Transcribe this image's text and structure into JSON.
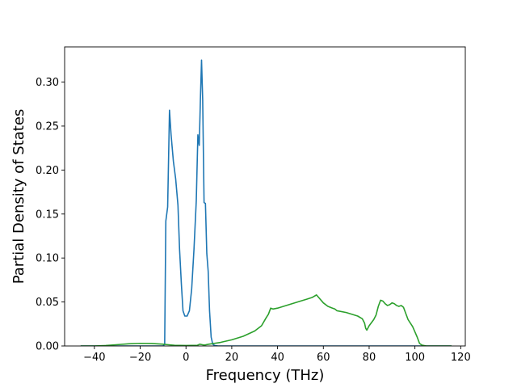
{
  "chart_data": {
    "type": "line",
    "title": "",
    "xlabel": "Frequency (THz)",
    "ylabel": "Partial Density of States",
    "xlim": [
      -53,
      122
    ],
    "ylim": [
      0,
      0.34
    ],
    "xticks": [
      -40,
      -20,
      0,
      20,
      40,
      60,
      80,
      100,
      120
    ],
    "xtick_labels": [
      "−40",
      "−20",
      "0",
      "20",
      "40",
      "60",
      "80",
      "100",
      "120"
    ],
    "yticks": [
      0.0,
      0.05,
      0.1,
      0.15,
      0.2,
      0.25,
      0.3
    ],
    "ytick_labels": [
      "0.00",
      "0.05",
      "0.10",
      "0.15",
      "0.20",
      "0.25",
      "0.30"
    ],
    "grid": false,
    "legend": "none",
    "series": [
      {
        "color": "#1f77b4",
        "x": [
          -46,
          -10,
          -9.3,
          -8.8,
          -8,
          -7.2,
          -6.5,
          -5.5,
          -4.5,
          -3.5,
          -2.8,
          -2,
          -1.3,
          -0.5,
          0.5,
          1.5,
          2.5,
          3.5,
          4.5,
          5.2,
          5.8,
          6.3,
          6.8,
          7.3,
          7.9,
          8.5,
          9.1,
          9.7,
          10.3,
          11,
          11.7,
          12.5,
          14,
          116
        ],
        "y": [
          0.0,
          0.0,
          0.002,
          0.142,
          0.158,
          0.268,
          0.24,
          0.21,
          0.19,
          0.16,
          0.11,
          0.07,
          0.04,
          0.034,
          0.034,
          0.04,
          0.065,
          0.11,
          0.165,
          0.24,
          0.228,
          0.28,
          0.325,
          0.28,
          0.163,
          0.162,
          0.105,
          0.085,
          0.04,
          0.01,
          0.002,
          0.0005,
          0.0,
          0.0
        ]
      },
      {
        "color": "#2ca02c",
        "x": [
          -46,
          -40,
          -35,
          -30,
          -25,
          -20,
          -15,
          -10,
          -8,
          -5,
          0,
          5,
          6,
          7,
          8,
          10,
          15,
          20,
          25,
          30,
          33,
          35,
          36,
          37,
          38,
          40,
          45,
          50,
          55,
          57,
          58,
          60,
          62,
          63,
          64,
          65,
          66,
          70,
          75,
          77,
          78,
          78.5,
          79,
          80,
          82,
          83,
          84,
          85,
          86,
          87,
          88,
          89,
          90,
          91,
          92,
          93,
          94,
          95,
          97,
          99,
          100,
          101,
          102,
          103,
          105,
          110,
          116
        ],
        "y": [
          0.0,
          0.0,
          0.0005,
          0.0015,
          0.0025,
          0.003,
          0.0028,
          0.002,
          0.0015,
          0.0008,
          0.0005,
          0.0008,
          0.002,
          0.0015,
          0.001,
          0.002,
          0.004,
          0.007,
          0.011,
          0.017,
          0.023,
          0.032,
          0.036,
          0.043,
          0.042,
          0.043,
          0.047,
          0.051,
          0.055,
          0.058,
          0.055,
          0.049,
          0.045,
          0.044,
          0.043,
          0.042,
          0.04,
          0.038,
          0.034,
          0.031,
          0.026,
          0.02,
          0.018,
          0.023,
          0.03,
          0.035,
          0.045,
          0.052,
          0.051,
          0.048,
          0.046,
          0.047,
          0.049,
          0.048,
          0.046,
          0.045,
          0.046,
          0.044,
          0.03,
          0.022,
          0.016,
          0.01,
          0.003,
          0.001,
          0.0,
          0.0,
          0.0
        ]
      }
    ]
  }
}
